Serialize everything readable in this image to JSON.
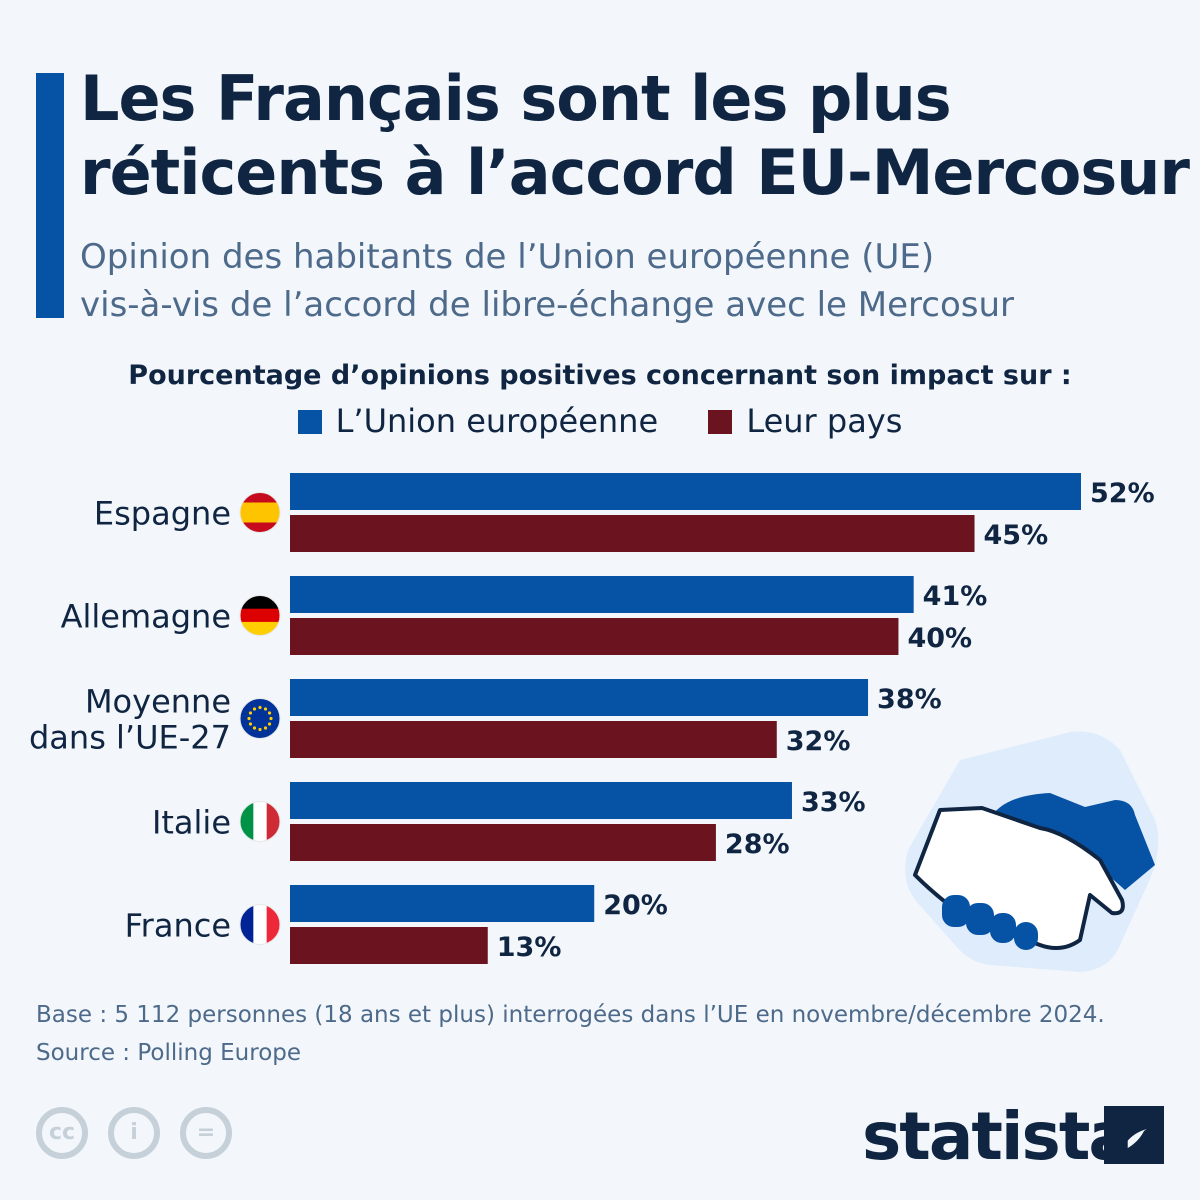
{
  "title_lines": [
    "Les Français sont les plus",
    "réticents à l’accord EU-Mercosur"
  ],
  "subtitle_lines": [
    "Opinion des habitants de l’Union européenne (UE)",
    "vis-à-vis de l’accord de libre-échange avec le Mercosur"
  ],
  "chart_data": {
    "type": "bar",
    "orientation": "horizontal",
    "title": "Pourcentage d’opinions positives concernant son impact sur :",
    "categories": [
      "Espagne",
      "Allemagne",
      "Moyenne dans l’UE-27",
      "Italie",
      "France"
    ],
    "category_flags": [
      "spain-flag",
      "germany-flag",
      "eu-flag",
      "italy-flag",
      "france-flag"
    ],
    "series": [
      {
        "name": "L’Union européenne",
        "color": "#0653a6",
        "values": [
          52,
          41,
          38,
          33,
          20
        ]
      },
      {
        "name": "Leur pays",
        "color": "#6b1420",
        "values": [
          45,
          40,
          32,
          28,
          13
        ]
      }
    ],
    "value_suffix": "%",
    "legend_position": "top",
    "grid": false
  },
  "footer": {
    "base": "Base : 5 112 personnes (18 ans et plus) interrogées dans l’UE en novembre/décembre 2024.",
    "source": "Source : Polling Europe"
  },
  "license_icons": [
    "cc-icon",
    "attribution-icon",
    "no-derivatives-icon"
  ],
  "logo": "statista"
}
